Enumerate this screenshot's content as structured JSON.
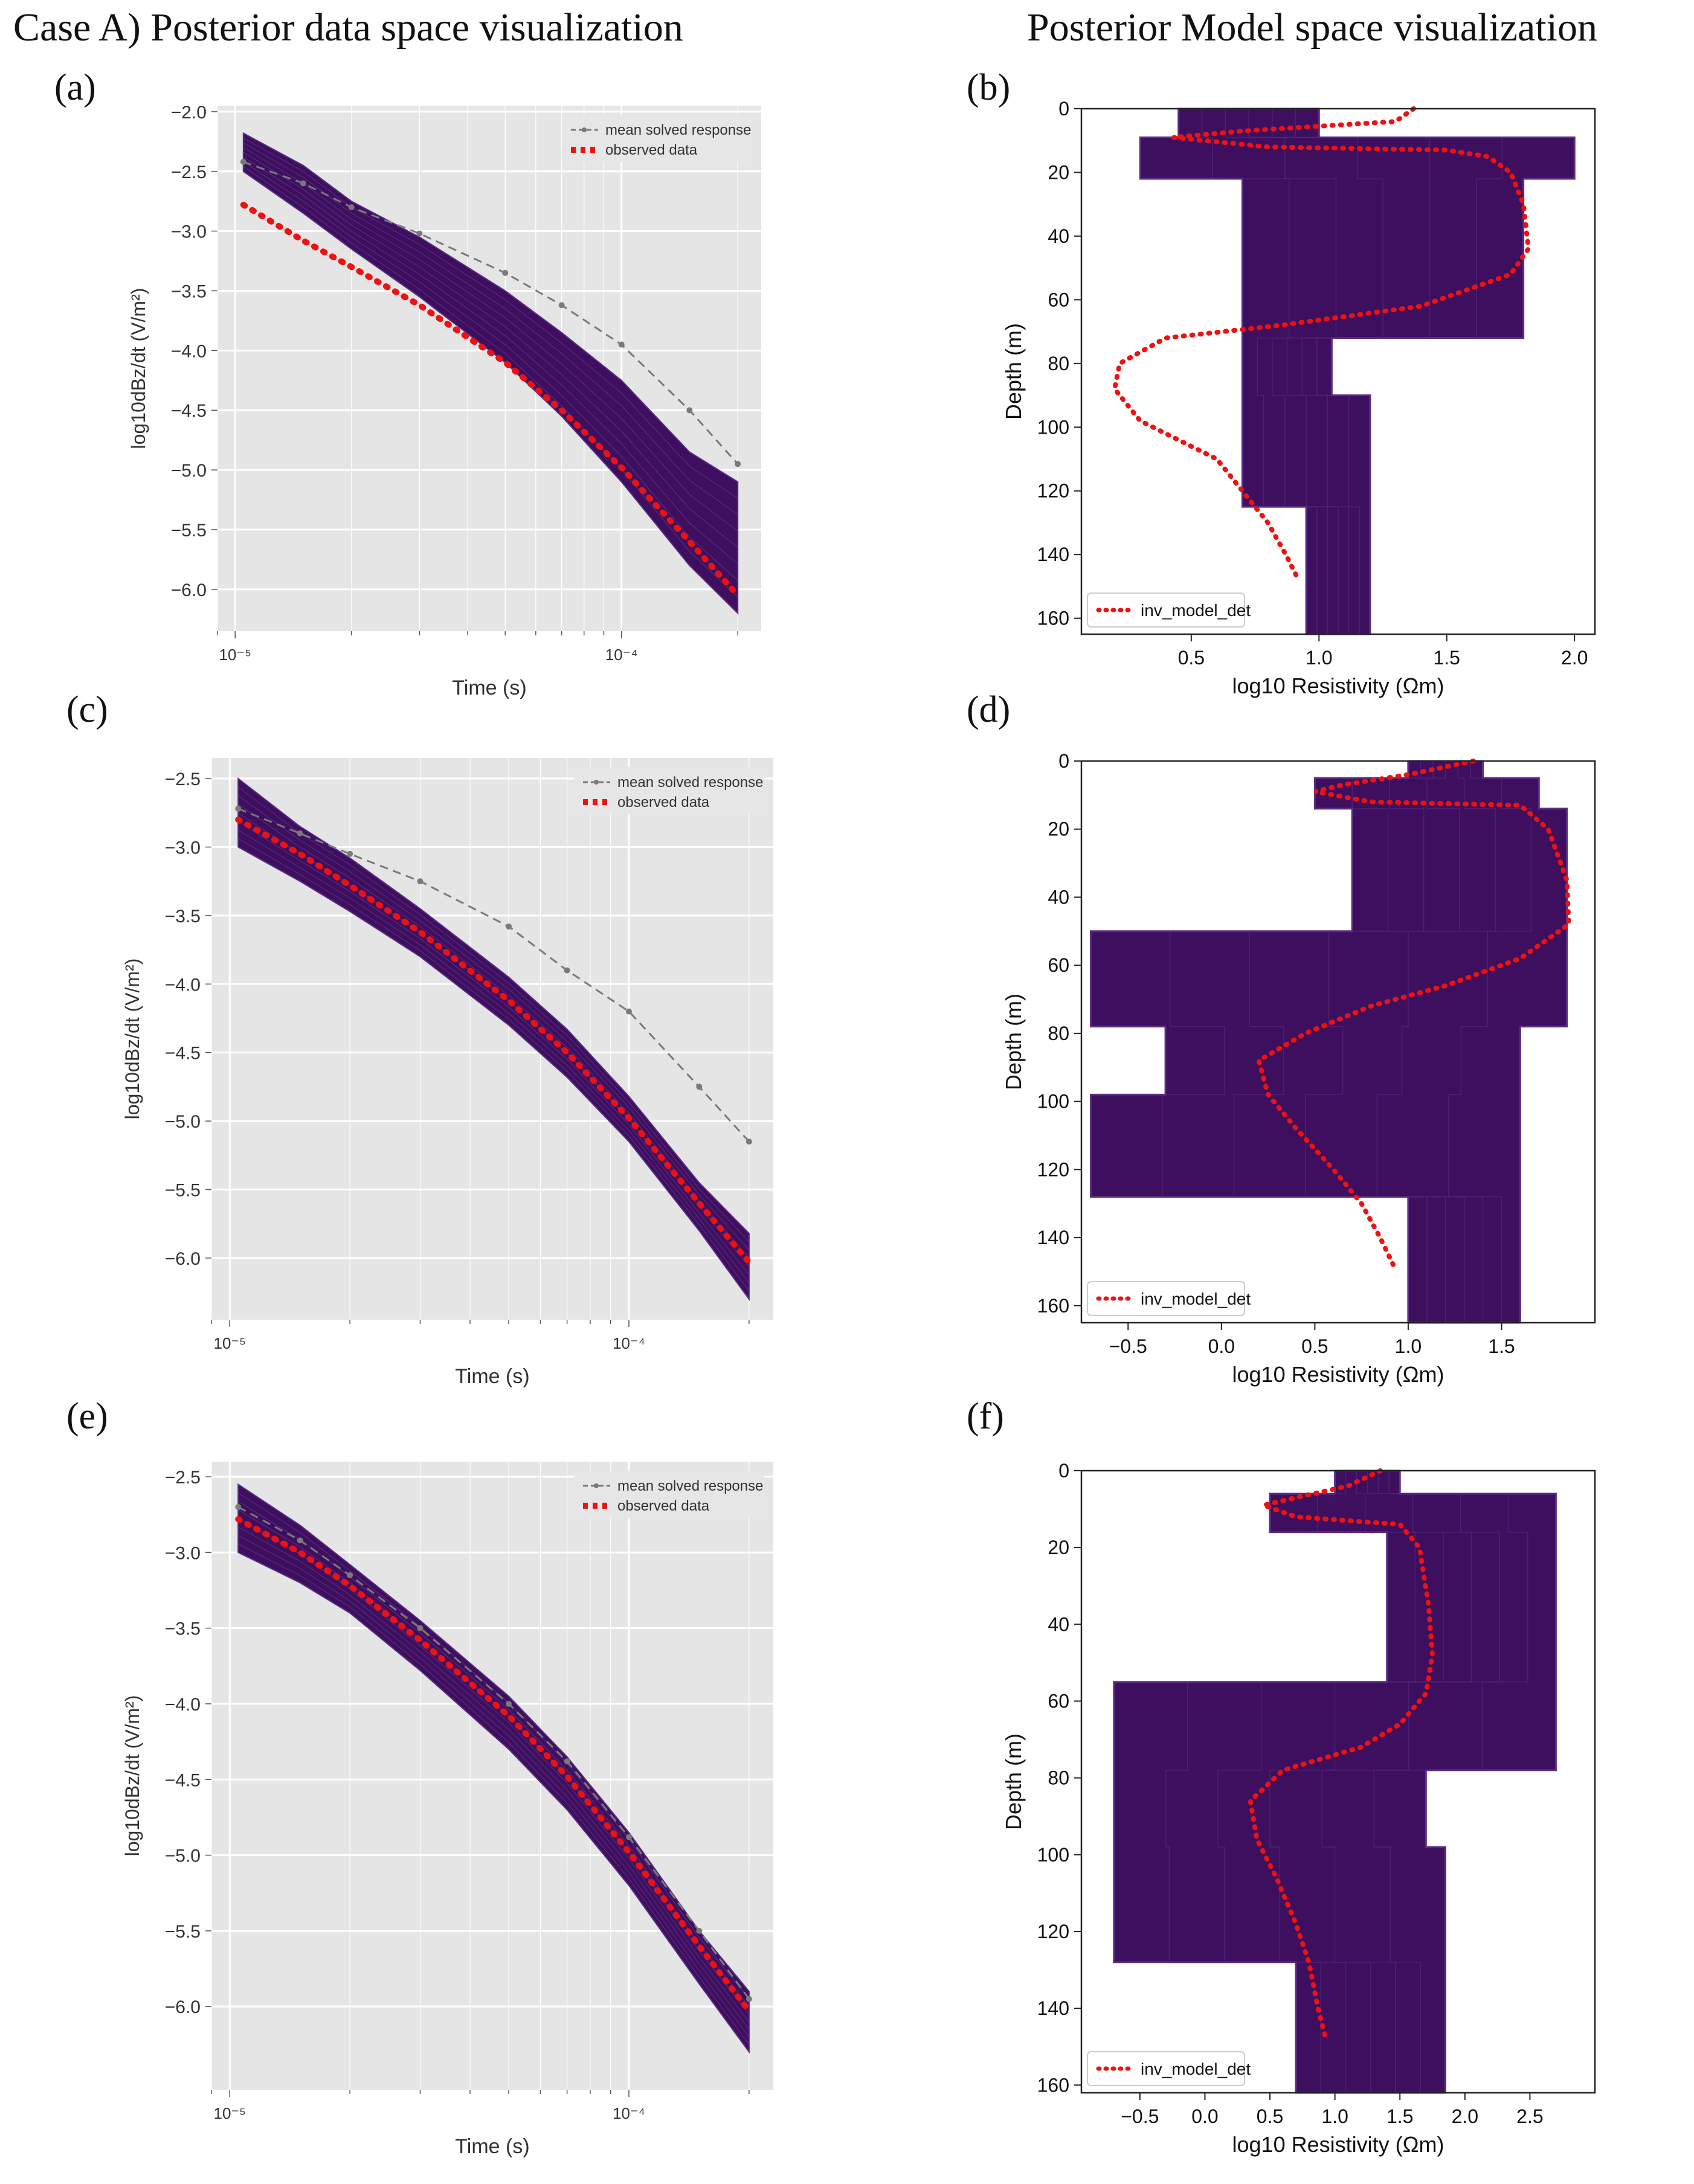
{
  "headers": {
    "left": "Case A)  Posterior data space visualization",
    "right": "Posterior Model space visualization"
  },
  "legend_text": {
    "mean": "mean solved response",
    "observed": "observed data",
    "inv": "inv_model_det"
  },
  "colors": {
    "ensemble": "#3d0f5e",
    "ensemble_edge": "#5a2d86",
    "observed": "#ee1111",
    "mean": "#7a7a7a",
    "panel_bg_gray": "#e5e5e5"
  },
  "chart_data": [
    {
      "id": "a",
      "panel_label": "(a)",
      "type": "line",
      "xlabel": "Time (s)",
      "ylabel": "log10dBz/dt (V/m²)",
      "x_scale": "log",
      "xlim": [
        9e-06,
        0.00023
      ],
      "ylim": [
        -6.35,
        -1.95
      ],
      "yticks": [
        -2.0,
        -2.5,
        -3.0,
        -3.5,
        -4.0,
        -4.5,
        -5.0,
        -5.5,
        -6.0
      ],
      "xticks": [
        {
          "value": 1e-05,
          "label": "10⁻⁵"
        },
        {
          "value": 0.0001,
          "label": "10⁻⁴"
        }
      ],
      "grid": true,
      "legend_position": "top-right",
      "series": [
        {
          "name": "mean solved response",
          "x": [
            1.05e-05,
            1.5e-05,
            2e-05,
            3e-05,
            5e-05,
            7e-05,
            0.0001,
            0.00015,
            0.0002
          ],
          "y": [
            -2.42,
            -2.6,
            -2.8,
            -3.02,
            -3.35,
            -3.62,
            -3.95,
            -4.5,
            -4.95
          ]
        },
        {
          "name": "observed data",
          "x": [
            1.05e-05,
            1.5e-05,
            2e-05,
            3e-05,
            5e-05,
            7e-05,
            0.0001,
            0.00015,
            0.0002
          ],
          "y": [
            -2.78,
            -3.08,
            -3.3,
            -3.62,
            -4.1,
            -4.5,
            -4.98,
            -5.6,
            -6.05
          ]
        }
      ],
      "ensemble_band": {
        "x": [
          1.05e-05,
          1.5e-05,
          2e-05,
          3e-05,
          5e-05,
          7e-05,
          0.0001,
          0.00015,
          0.0002
        ],
        "upper": [
          -2.18,
          -2.45,
          -2.75,
          -3.05,
          -3.5,
          -3.85,
          -4.25,
          -4.85,
          -5.1
        ],
        "lower": [
          -2.5,
          -2.85,
          -3.15,
          -3.55,
          -4.1,
          -4.55,
          -5.1,
          -5.8,
          -6.2
        ]
      }
    },
    {
      "id": "b",
      "panel_label": "(b)",
      "type": "line",
      "xlabel": "log10 Resistivity (Ωm)",
      "ylabel": "Depth (m)",
      "xlim": [
        0.07,
        2.08
      ],
      "ylim": [
        165,
        0
      ],
      "xticks": [
        0.5,
        1.0,
        1.5,
        2.0
      ],
      "yticks": [
        0,
        20,
        40,
        60,
        80,
        100,
        120,
        140,
        160
      ],
      "grid": false,
      "legend_position": "bottom-left",
      "series": [
        {
          "name": "inv_model_det",
          "x": [
            1.37,
            1.3,
            0.7,
            0.43,
            0.8,
            1.5,
            1.66,
            1.75,
            1.8,
            1.82,
            1.75,
            1.4,
            0.85,
            0.4,
            0.22,
            0.2,
            0.3,
            0.45,
            0.6,
            0.7,
            0.8,
            0.87,
            0.92
          ],
          "y": [
            0,
            4,
            7,
            9,
            12,
            13,
            15,
            20,
            30,
            44,
            52,
            62,
            68,
            72,
            80,
            88,
            98,
            104,
            110,
            120,
            130,
            140,
            148
          ]
        }
      ],
      "ensemble_band": {
        "depth": [
          0,
          9,
          9,
          22,
          22,
          44,
          44,
          72,
          72,
          90,
          90,
          125,
          125,
          165
        ],
        "min": [
          0.45,
          0.45,
          0.3,
          0.3,
          0.7,
          0.7,
          0.7,
          0.7,
          0.7,
          0.7,
          0.7,
          0.7,
          0.95,
          0.95
        ],
        "max": [
          1.0,
          1.0,
          2.0,
          2.0,
          1.8,
          1.8,
          1.8,
          1.8,
          1.05,
          1.05,
          1.2,
          1.2,
          1.2,
          1.2
        ]
      }
    },
    {
      "id": "c",
      "panel_label": "(c)",
      "type": "line",
      "xlabel": "Time (s)",
      "ylabel": "log10dBz/dt (V/m²)",
      "x_scale": "log",
      "xlim": [
        9e-06,
        0.00023
      ],
      "ylim": [
        -6.45,
        -2.35
      ],
      "yticks": [
        -2.5,
        -3.0,
        -3.5,
        -4.0,
        -4.5,
        -5.0,
        -5.5,
        -6.0
      ],
      "xticks": [
        {
          "value": 1e-05,
          "label": "10⁻⁵"
        },
        {
          "value": 0.0001,
          "label": "10⁻⁴"
        }
      ],
      "grid": true,
      "legend_position": "top-right",
      "series": [
        {
          "name": "mean solved response",
          "x": [
            1.05e-05,
            1.5e-05,
            2e-05,
            3e-05,
            5e-05,
            7e-05,
            0.0001,
            0.00015,
            0.0002
          ],
          "y": [
            -2.72,
            -2.9,
            -3.05,
            -3.25,
            -3.58,
            -3.9,
            -4.2,
            -4.75,
            -5.15
          ]
        },
        {
          "name": "observed data",
          "x": [
            1.05e-05,
            1.5e-05,
            2e-05,
            3e-05,
            5e-05,
            7e-05,
            0.0001,
            0.00015,
            0.0002
          ],
          "y": [
            -2.8,
            -3.05,
            -3.28,
            -3.62,
            -4.12,
            -4.5,
            -4.98,
            -5.6,
            -6.03
          ]
        }
      ],
      "ensemble_band": {
        "x": [
          1.05e-05,
          1.5e-05,
          2e-05,
          3e-05,
          5e-05,
          7e-05,
          0.0001,
          0.00015,
          0.0002
        ],
        "upper": [
          -2.5,
          -2.85,
          -3.08,
          -3.45,
          -3.95,
          -4.33,
          -4.82,
          -5.45,
          -5.82
        ],
        "lower": [
          -3.0,
          -3.25,
          -3.47,
          -3.8,
          -4.3,
          -4.68,
          -5.15,
          -5.8,
          -6.3
        ]
      }
    },
    {
      "id": "d",
      "panel_label": "(d)",
      "type": "line",
      "xlabel": "log10 Resistivity (Ωm)",
      "ylabel": "Depth (m)",
      "xlim": [
        -0.75,
        2.0
      ],
      "ylim": [
        165,
        0
      ],
      "xticks": [
        -0.5,
        0.0,
        0.5,
        1.0,
        1.5
      ],
      "yticks": [
        0,
        20,
        40,
        60,
        80,
        100,
        120,
        140,
        160
      ],
      "grid": false,
      "legend_position": "bottom-left",
      "series": [
        {
          "name": "inv_model_det",
          "x": [
            1.35,
            1.0,
            0.65,
            0.5,
            0.8,
            1.6,
            1.75,
            1.85,
            1.86,
            1.6,
            1.2,
            0.8,
            0.45,
            0.2,
            0.25,
            0.4,
            0.6,
            0.75,
            0.85,
            0.92
          ],
          "y": [
            0,
            4,
            7,
            9,
            12,
            13,
            20,
            35,
            48,
            58,
            66,
            72,
            80,
            88,
            98,
            108,
            120,
            130,
            140,
            148
          ]
        }
      ],
      "ensemble_band": {
        "depth": [
          0,
          5,
          5,
          14,
          14,
          50,
          50,
          78,
          78,
          98,
          98,
          128,
          128,
          165
        ],
        "min": [
          1.0,
          1.0,
          0.5,
          0.5,
          0.7,
          0.7,
          -0.7,
          -0.7,
          -0.3,
          -0.3,
          -0.7,
          -0.7,
          1.0,
          1.0
        ],
        "max": [
          1.4,
          1.4,
          1.7,
          1.7,
          1.85,
          1.85,
          1.85,
          1.85,
          1.6,
          1.6,
          1.6,
          1.6,
          1.6,
          1.6
        ]
      }
    },
    {
      "id": "e",
      "panel_label": "(e)",
      "type": "line",
      "xlabel": "Time (s)",
      "ylabel": "log10dBz/dt (V/m²)",
      "x_scale": "log",
      "xlim": [
        9e-06,
        0.00023
      ],
      "ylim": [
        -6.55,
        -2.4
      ],
      "yticks": [
        -2.5,
        -3.0,
        -3.5,
        -4.0,
        -4.5,
        -5.0,
        -5.5,
        -6.0
      ],
      "xticks": [
        {
          "value": 1e-05,
          "label": "10⁻⁵"
        },
        {
          "value": 0.0001,
          "label": "10⁻⁴"
        }
      ],
      "grid": true,
      "legend_position": "top-right",
      "series": [
        {
          "name": "mean solved response",
          "x": [
            1.05e-05,
            1.5e-05,
            2e-05,
            3e-05,
            5e-05,
            7e-05,
            0.0001,
            0.00015,
            0.0002
          ],
          "y": [
            -2.7,
            -2.92,
            -3.15,
            -3.5,
            -4.0,
            -4.38,
            -4.88,
            -5.5,
            -5.95
          ]
        },
        {
          "name": "observed data",
          "x": [
            1.05e-05,
            1.5e-05,
            2e-05,
            3e-05,
            5e-05,
            7e-05,
            0.0001,
            0.00015,
            0.0002
          ],
          "y": [
            -2.78,
            -3.0,
            -3.22,
            -3.58,
            -4.08,
            -4.48,
            -4.98,
            -5.6,
            -6.03
          ]
        }
      ],
      "ensemble_band": {
        "x": [
          1.05e-05,
          1.5e-05,
          2e-05,
          3e-05,
          5e-05,
          7e-05,
          0.0001,
          0.00015,
          0.0002
        ],
        "upper": [
          -2.55,
          -2.82,
          -3.08,
          -3.45,
          -3.95,
          -4.35,
          -4.85,
          -5.5,
          -5.9
        ],
        "lower": [
          -3.0,
          -3.2,
          -3.4,
          -3.78,
          -4.3,
          -4.7,
          -5.2,
          -5.85,
          -6.3
        ]
      }
    },
    {
      "id": "f",
      "panel_label": "(f)",
      "type": "line",
      "xlabel": "log10 Resistivity (Ωm)",
      "ylabel": "Depth (m)",
      "xlim": [
        -0.95,
        3.0
      ],
      "ylim": [
        162,
        0
      ],
      "xticks": [
        -0.5,
        0.0,
        0.5,
        1.0,
        1.5,
        2.0,
        2.5
      ],
      "yticks": [
        0,
        20,
        40,
        60,
        80,
        100,
        120,
        140,
        160
      ],
      "grid": false,
      "legend_position": "bottom-left",
      "series": [
        {
          "name": "inv_model_det",
          "x": [
            1.35,
            1.1,
            0.7,
            0.45,
            0.7,
            1.5,
            1.65,
            1.72,
            1.75,
            1.7,
            1.5,
            1.2,
            0.6,
            0.35,
            0.4,
            0.55,
            0.7,
            0.8,
            0.87,
            0.93
          ],
          "y": [
            0,
            4,
            7,
            9,
            12,
            14,
            20,
            35,
            48,
            58,
            66,
            72,
            78,
            86,
            96,
            106,
            118,
            128,
            140,
            148
          ]
        }
      ],
      "ensemble_band": {
        "depth": [
          0,
          6,
          6,
          16,
          16,
          55,
          55,
          78,
          78,
          98,
          98,
          128,
          128,
          162
        ],
        "min": [
          1.0,
          1.0,
          0.5,
          0.5,
          1.4,
          1.4,
          -0.7,
          -0.7,
          -0.7,
          -0.7,
          -0.7,
          -0.7,
          0.7,
          0.7
        ],
        "max": [
          1.5,
          1.5,
          2.7,
          2.7,
          2.7,
          2.7,
          2.7,
          2.7,
          1.7,
          1.7,
          1.85,
          1.85,
          1.85,
          1.85
        ]
      }
    }
  ]
}
